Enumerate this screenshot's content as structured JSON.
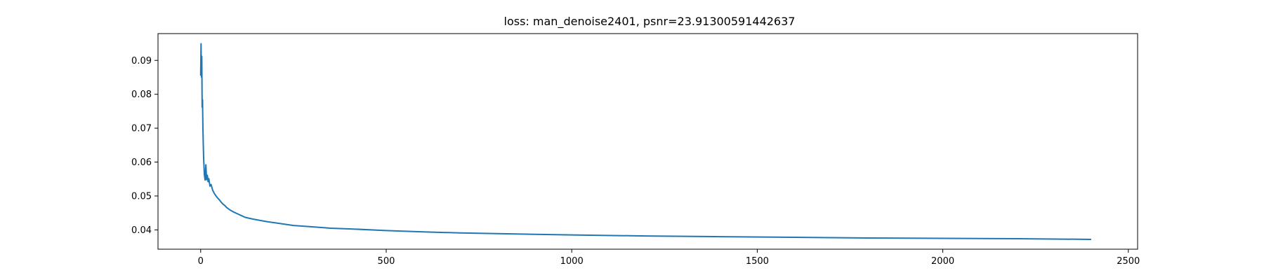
{
  "chart_data": {
    "type": "line",
    "title": "loss: man_denoise2401, psnr=23.91300591442637",
    "xlabel": "",
    "ylabel": "",
    "xlim": [
      -115,
      2525
    ],
    "ylim": [
      0.0343,
      0.0979
    ],
    "xticks": [
      0,
      500,
      1000,
      1500,
      2000,
      2500
    ],
    "xtick_labels": [
      "0",
      "500",
      "1000",
      "1500",
      "2000",
      "2500"
    ],
    "yticks": [
      0.04,
      0.05,
      0.06,
      0.07,
      0.08,
      0.09
    ],
    "ytick_labels": [
      "0.04",
      "0.05",
      "0.06",
      "0.07",
      "0.08",
      "0.09"
    ],
    "grid": false,
    "legend": "none",
    "series": [
      {
        "color": "#1f77b4",
        "x": [
          0,
          1,
          2,
          3,
          4,
          5,
          6,
          7,
          8,
          10,
          12,
          14,
          16,
          18,
          20,
          22,
          25,
          28,
          32,
          36,
          40,
          45,
          50,
          55,
          60,
          65,
          70,
          75,
          80,
          90,
          100,
          110,
          120,
          140,
          160,
          180,
          200,
          250,
          300,
          350,
          400,
          500,
          600,
          700,
          800,
          900,
          1000,
          1200,
          1400,
          1600,
          1800,
          2000,
          2200,
          2400
        ],
        "y": [
          0.0855,
          0.0949,
          0.0851,
          0.0912,
          0.0762,
          0.0784,
          0.0702,
          0.0653,
          0.0612,
          0.0562,
          0.0547,
          0.0592,
          0.0548,
          0.0561,
          0.0542,
          0.0551,
          0.0529,
          0.0534,
          0.0518,
          0.0509,
          0.0502,
          0.0495,
          0.0489,
          0.0482,
          0.0476,
          0.0472,
          0.0466,
          0.0462,
          0.0458,
          0.0452,
          0.0447,
          0.0442,
          0.0437,
          0.0432,
          0.0428,
          0.0424,
          0.0421,
          0.0413,
          0.0409,
          0.0405,
          0.0403,
          0.0398,
          0.0394,
          0.0391,
          0.0389,
          0.0387,
          0.0385,
          0.0382,
          0.038,
          0.0378,
          0.0376,
          0.0375,
          0.0374,
          0.0372
        ]
      }
    ]
  }
}
